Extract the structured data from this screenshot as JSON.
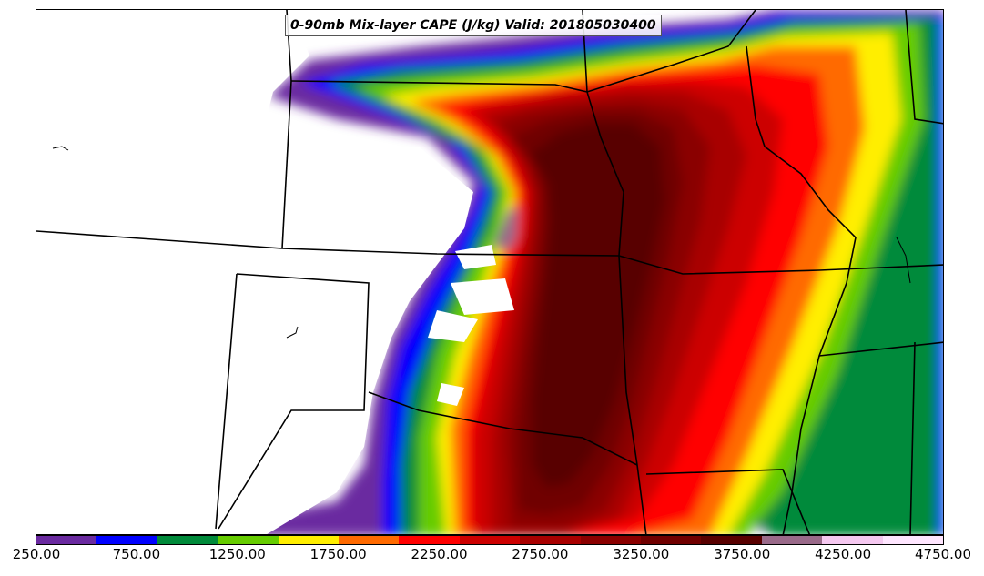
{
  "title": "0-90mb Mix-layer CAPE (J/kg) Valid: 201805030400",
  "colorbar": {
    "colors": [
      "#6a2aa0",
      "#0000ff",
      "#008a3a",
      "#66cc00",
      "#ffee00",
      "#ff6a00",
      "#ff0000",
      "#cc0000",
      "#a80000",
      "#8a0000",
      "#700000",
      "#580000",
      "#9a6a8a",
      "#f5c8f0",
      "#ffe6ff"
    ],
    "tick_labels": [
      "250.00",
      "750.00",
      "1250.00",
      "1750.00",
      "2250.00",
      "2750.00",
      "3250.00",
      "3750.00",
      "4250.00",
      "4750.00"
    ]
  },
  "chart_data": {
    "type": "heatmap",
    "title": "0-90mb Mix-layer CAPE (J/kg) Valid: 201805030400",
    "variable": "0-90mb Mix-layer CAPE",
    "units": "J/kg",
    "valid_time": "201805030400",
    "levels": [
      250,
      500,
      750,
      1000,
      1250,
      1500,
      1750,
      2000,
      2250,
      2500,
      2750,
      3000,
      3250,
      3500,
      3750,
      4000,
      4250,
      4500,
      4750
    ],
    "colorbar_range": [
      250,
      4750
    ]
  }
}
